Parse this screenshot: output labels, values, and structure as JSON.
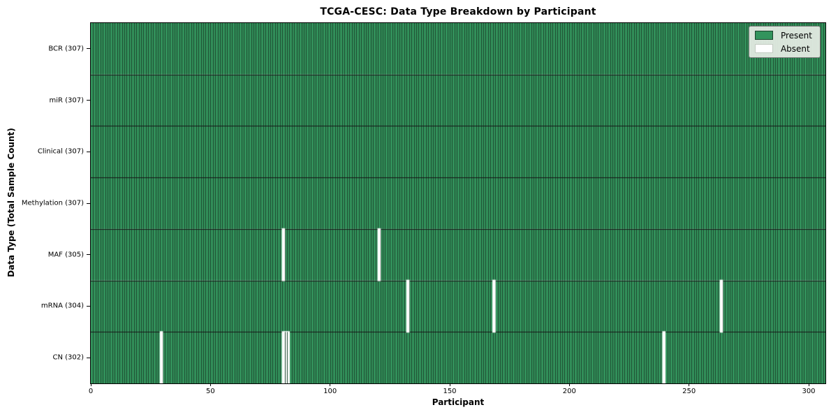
{
  "title": "TCGA-CESC: Data Type Breakdown by Participant",
  "xlabel": "Participant",
  "ylabel": "Data Type (Total Sample Count)",
  "legend": {
    "present_label": "Present",
    "absent_label": "Absent"
  },
  "colors": {
    "present": "#33945d",
    "absent": "#ffffff",
    "cell_edge": "#1b432c",
    "row_divider": "#161616",
    "axis": "#000000",
    "legend_bg": "#e3eae1",
    "legend_border": "#777777",
    "absent_swatch_border": "#c3ccc2"
  },
  "chart_data": {
    "type": "heatmap",
    "title": "TCGA-CESC: Data Type Breakdown by Participant",
    "xlabel": "Participant",
    "ylabel": "Data Type (Total Sample Count)",
    "n_participants": 307,
    "xlim": [
      0,
      307
    ],
    "x_ticks": [
      0,
      50,
      100,
      150,
      200,
      250,
      300
    ],
    "grid": false,
    "legend_entries": [
      "Present",
      "Absent"
    ],
    "legend_position": "upper right",
    "rows": [
      {
        "label": "BCR (307)",
        "data_type": "BCR",
        "present_count": 307,
        "absent_participants": []
      },
      {
        "label": "miR (307)",
        "data_type": "miR",
        "present_count": 307,
        "absent_participants": []
      },
      {
        "label": "Clinical (307)",
        "data_type": "Clinical",
        "present_count": 307,
        "absent_participants": []
      },
      {
        "label": "Methylation (307)",
        "data_type": "Methylation",
        "present_count": 307,
        "absent_participants": []
      },
      {
        "label": "MAF (305)",
        "data_type": "MAF",
        "present_count": 305,
        "absent_participants": [
          80,
          120
        ]
      },
      {
        "label": "mRNA (304)",
        "data_type": "mRNA",
        "present_count": 304,
        "absent_participants": [
          132,
          168,
          263
        ]
      },
      {
        "label": "CN (302)",
        "data_type": "CN",
        "present_count": 302,
        "absent_participants": [
          29,
          80,
          81,
          82,
          239
        ]
      }
    ]
  }
}
